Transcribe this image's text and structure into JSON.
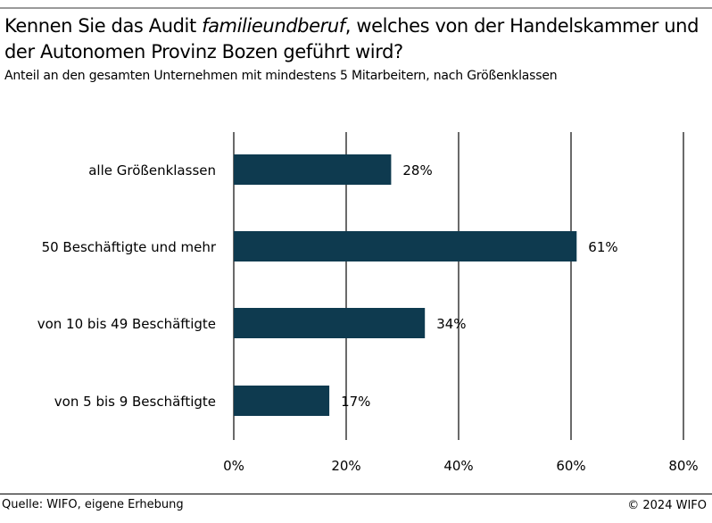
{
  "header": {
    "title_part1": "Kennen Sie das Audit ",
    "title_italic": "familieundberuf",
    "title_part2": ", welches von der Handelskammer und der Autonomen Provinz Bozen geführt wird?",
    "subtitle": "Anteil an den gesamten Unternehmen mit mindestens 5 Mitarbeitern, nach Größenklassen"
  },
  "chart_data": {
    "type": "bar",
    "orientation": "horizontal",
    "categories": [
      "alle Größenklassen",
      "50 Beschäftigte und mehr",
      "von 10 bis 49 Beschäftigte",
      "von 5 bis 9 Beschäftigte"
    ],
    "values": [
      28,
      61,
      34,
      17
    ],
    "value_labels": [
      "28%",
      "61%",
      "34%",
      "17%"
    ],
    "xlim": [
      0,
      80
    ],
    "x_ticks": [
      0,
      20,
      40,
      60,
      80
    ],
    "x_tick_labels": [
      "0%",
      "20%",
      "40%",
      "60%",
      "80%"
    ],
    "grid": true,
    "bar_color": "#0e3a4f"
  },
  "footer": {
    "source": "Quelle: WIFO, eigene Erhebung",
    "copyright": "© 2024 WIFO"
  }
}
